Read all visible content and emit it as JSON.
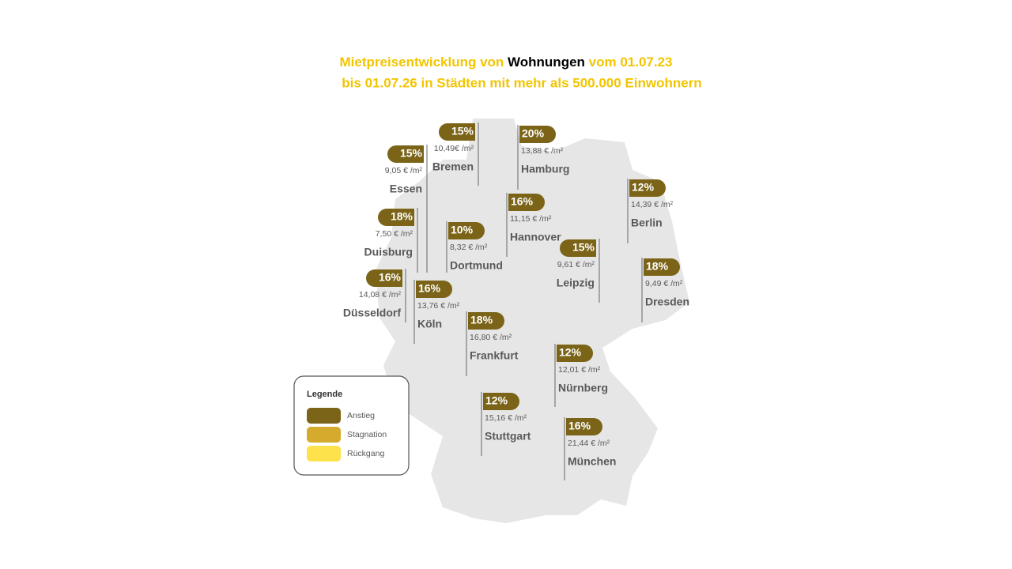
{
  "header": {
    "title_line1": {
      "part1": "Mietpreisentwicklung von",
      "highlight": "Wohnungen",
      "part2": "vom 01.07.23"
    },
    "title_line2": "bis 01.07.26 in Städten mit mehr als 500.000 Einwohnern"
  },
  "cities": [
    {
      "name": "Bremen",
      "change": "15%",
      "price": "10,49€ /m²"
    },
    {
      "name": "Hamburg",
      "change": "20%",
      "price": "13,88 € /m²"
    },
    {
      "name": "Essen",
      "change": "15%",
      "price": "9,05 € /m²"
    },
    {
      "name": "Duisburg",
      "change": "18%",
      "price": "7,50 € /m²"
    },
    {
      "name": "Dortmund",
      "change": "10%",
      "price": "8,32 € /m²"
    },
    {
      "name": "Hannover",
      "change": "16%",
      "price": "11,15 € /m²"
    },
    {
      "name": "Berlin",
      "change": "12%",
      "price": "14,39 € /m²"
    },
    {
      "name": "Leipzig",
      "change": "15%",
      "price": "9,61 € /m²"
    },
    {
      "name": "Dresden",
      "change": "18%",
      "price": "9,49 € /m²"
    },
    {
      "name": "Düsseldorf",
      "change": "16%",
      "price": "14,08 € /m²"
    },
    {
      "name": "Köln",
      "change": "16%",
      "price": "13,76 € /m²"
    },
    {
      "name": "Frankfurt",
      "change": "18%",
      "price": "16,80 € /m²"
    },
    {
      "name": "Nürnberg",
      "change": "12%",
      "price": "12,01 € /m²"
    },
    {
      "name": "Stuttgart",
      "change": "12%",
      "price": "15,16 € /m²"
    },
    {
      "name": "München",
      "change": "16%",
      "price": "21,44 € /m²"
    }
  ],
  "legend": {
    "title": "Legende",
    "items": [
      {
        "label": "Anstieg",
        "color": "#7b6418"
      },
      {
        "label": "Stagnation",
        "color": "#d4ab2c"
      },
      {
        "label": "Rückgang",
        "color": "#fde24c"
      }
    ]
  }
}
